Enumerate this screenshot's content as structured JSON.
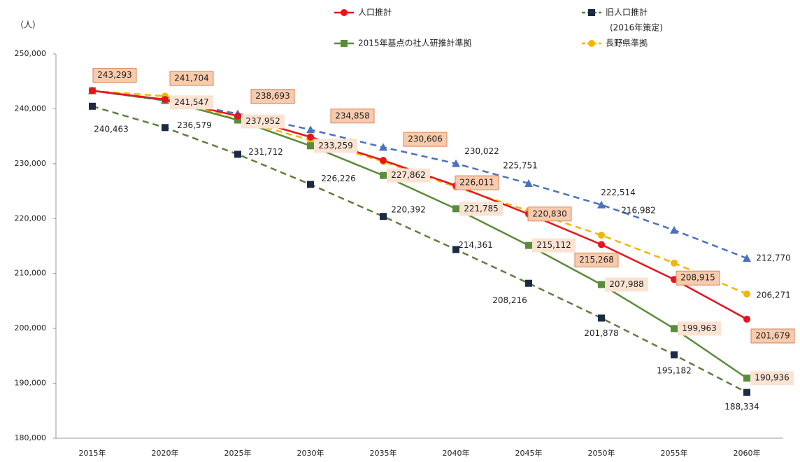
{
  "chart_data": {
    "type": "line",
    "y_axis_label": "（人）",
    "categories": [
      "2015年",
      "2020年",
      "2025年",
      "2030年",
      "2035年",
      "2040年",
      "2045年",
      "2050年",
      "2055年",
      "2060年"
    ],
    "ylim": [
      180000,
      250000
    ],
    "yticks": [
      {
        "value": 180000,
        "label": "180,000"
      },
      {
        "value": 190000,
        "label": "190,000"
      },
      {
        "value": 200000,
        "label": "200,000"
      },
      {
        "value": 210000,
        "label": "210,000"
      },
      {
        "value": 220000,
        "label": "220,000"
      },
      {
        "value": 230000,
        "label": "230,000"
      },
      {
        "value": 240000,
        "label": "240,000"
      },
      {
        "value": 250000,
        "label": "250,000"
      }
    ],
    "series": [
      {
        "color": "#4a72c0",
        "line_style": "dashed",
        "marker": "triangle",
        "values": [
          243300,
          241500,
          239100,
          236200,
          233000,
          230022,
          226400,
          222514,
          217900,
          212770
        ],
        "value_labels": [
          null,
          null,
          null,
          null,
          null,
          "230,022",
          null,
          "222,514",
          null,
          "212,770"
        ]
      },
      {
        "name": "旧人口推計",
        "note": "(2016年策定)",
        "color": "#1c2a44",
        "line_color": "#5f7f3f",
        "line_style": "dashed",
        "marker": "square",
        "values": [
          240463,
          236579,
          231712,
          226226,
          220392,
          214361,
          208216,
          201878,
          195182,
          188334
        ],
        "value_labels": [
          "240,463",
          "236,579",
          "231,712",
          "226,226",
          "220,392",
          "214,361",
          "208,216",
          "201,878",
          "195,182",
          "188,334"
        ]
      },
      {
        "name": "長野県準拠",
        "color": "#f2b705",
        "line_style": "dashed",
        "marker": "circle",
        "values": [
          243293,
          242300,
          238000,
          234300,
          230400,
          225751,
          221400,
          216982,
          211900,
          206271
        ],
        "value_labels": [
          null,
          null,
          null,
          null,
          null,
          "225,751",
          null,
          "216,982",
          null,
          "206,271"
        ]
      },
      {
        "name": "2015年基点の社人研推計準拠",
        "color": "#5b8c3a",
        "line_style": "solid",
        "marker": "square",
        "values": [
          243293,
          241547,
          237952,
          233259,
          227862,
          221785,
          215112,
          207988,
          199963,
          190936
        ],
        "value_labels": [
          null,
          "241,547",
          "237,952",
          "233,259",
          "227,862",
          "221,785",
          "215,112",
          "207,988",
          "199,963",
          "190,936"
        ]
      },
      {
        "name": "人口推計",
        "color": "#e8141b",
        "line_style": "solid",
        "marker": "circle",
        "values": [
          243293,
          241704,
          238693,
          234858,
          230606,
          226011,
          220830,
          215268,
          208915,
          201679
        ],
        "value_labels": [
          "243,293",
          "241,704",
          "238,693",
          "234,858",
          "230,606",
          "226,011",
          "220,830",
          "215,268",
          "208,915",
          "201,679"
        ]
      }
    ]
  }
}
